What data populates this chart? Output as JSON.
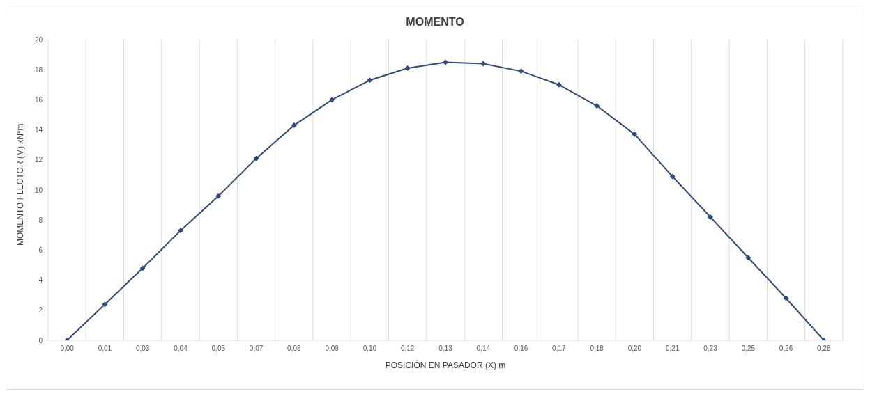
{
  "chart_data": {
    "type": "line",
    "title": "MOMENTO",
    "xlabel": "POSICIÓN EN PASADOR (X) m",
    "ylabel": "MOMENTO FLECTOR (M) kN*m",
    "categories": [
      "0,00",
      "0,01",
      "0,03",
      "0,04",
      "0,05",
      "0,07",
      "0,08",
      "0,09",
      "0,10",
      "0,12",
      "0,13",
      "0,14",
      "0,16",
      "0,17",
      "0,18",
      "0,20",
      "0,21",
      "0,23",
      "0,25",
      "0,26",
      "0,28"
    ],
    "series": [
      {
        "color": "#2e4a7d",
        "values": [
          0,
          2.4,
          4.8,
          7.3,
          9.6,
          12.1,
          14.3,
          16.0,
          17.3,
          18.1,
          18.5,
          18.4,
          17.9,
          17.0,
          15.6,
          13.7,
          10.9,
          8.2,
          5.5,
          2.8,
          0
        ]
      }
    ],
    "ylim": [
      0,
      20
    ],
    "yticks": [
      0,
      2,
      4,
      6,
      8,
      10,
      12,
      14,
      16,
      18,
      20
    ],
    "grid": "x",
    "legend": false,
    "marker": "diamond",
    "line_style": "solid"
  }
}
